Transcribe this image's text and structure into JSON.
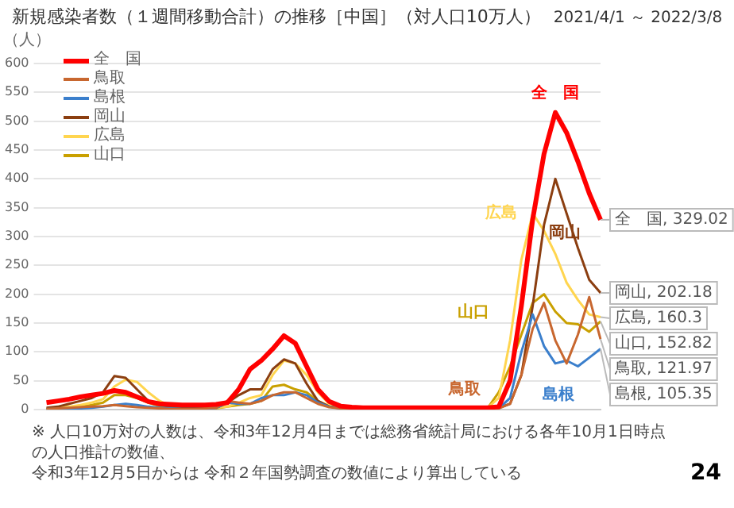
{
  "chart_data": {
    "type": "line",
    "title": "新規感染者数（１週間移動合計）の推移［中国］（対人口10万人）",
    "subtitle": "2021/4/1 ～ 2022/3/8",
    "ylabel": "（人）",
    "categories": [
      null,
      null,
      null,
      null,
      null,
      null,
      null,
      null,
      null,
      null,
      null,
      null,
      null,
      null,
      null,
      null,
      null,
      null,
      null,
      null,
      null,
      null,
      null,
      null,
      null,
      null,
      null,
      null,
      null,
      null,
      null,
      null,
      null,
      null,
      null,
      null,
      null,
      null,
      null,
      null,
      null,
      null,
      null,
      null,
      null,
      null,
      null,
      null,
      null,
      null
    ],
    "series": [
      {
        "name": "全　国",
        "color": "#ff0000",
        "values": [
          12,
          15,
          18,
          22,
          25,
          28,
          33,
          30,
          22,
          14,
          10,
          9,
          8,
          8,
          8,
          9,
          12,
          35,
          70,
          85,
          105,
          128,
          115,
          75,
          35,
          14,
          6,
          4,
          3,
          3,
          3,
          3,
          3,
          3,
          3,
          3,
          3,
          3,
          3,
          3,
          5,
          50,
          180,
          330,
          443,
          515,
          480,
          430,
          375,
          329.02
        ],
        "value_labels": [
          null,
          null,
          null,
          null,
          null,
          null,
          null,
          null,
          null,
          null,
          null,
          null,
          null,
          null,
          null,
          null,
          null,
          null,
          null,
          null,
          null,
          null,
          null,
          null,
          null,
          null,
          null,
          null,
          null,
          null,
          null,
          null,
          null,
          null,
          null,
          null,
          null,
          null,
          null,
          null,
          null,
          null,
          null,
          null,
          null,
          null,
          null,
          null,
          null,
          "全　国, 329.02"
        ]
      },
      {
        "name": "鳥取",
        "color": "#c8672f",
        "values": [
          1,
          2,
          3,
          4,
          5,
          6,
          8,
          6,
          4,
          3,
          2,
          1,
          1,
          1,
          2,
          3,
          15,
          12,
          10,
          15,
          25,
          30,
          30,
          20,
          10,
          4,
          2,
          1,
          1,
          1,
          1,
          1,
          1,
          1,
          1,
          1,
          1,
          1,
          1,
          1,
          2,
          10,
          60,
          140,
          185,
          120,
          80,
          130,
          195,
          121.97
        ],
        "value_labels": [
          null,
          null,
          null,
          null,
          null,
          null,
          null,
          null,
          null,
          null,
          null,
          null,
          null,
          null,
          null,
          null,
          null,
          null,
          null,
          null,
          null,
          null,
          null,
          null,
          null,
          null,
          null,
          null,
          null,
          null,
          null,
          null,
          null,
          null,
          null,
          null,
          null,
          null,
          null,
          null,
          null,
          null,
          null,
          null,
          null,
          null,
          null,
          null,
          null,
          "鳥取, 121.97"
        ]
      },
      {
        "name": "島根",
        "color": "#3b7fcc",
        "values": [
          1,
          1,
          2,
          2,
          3,
          5,
          8,
          10,
          8,
          5,
          3,
          2,
          1,
          1,
          1,
          3,
          12,
          10,
          10,
          20,
          25,
          25,
          30,
          25,
          12,
          5,
          2,
          1,
          1,
          1,
          1,
          1,
          1,
          1,
          1,
          1,
          1,
          1,
          1,
          1,
          2,
          20,
          100,
          165,
          110,
          80,
          85,
          75,
          90,
          105.35
        ],
        "value_labels": [
          null,
          null,
          null,
          null,
          null,
          null,
          null,
          null,
          null,
          null,
          null,
          null,
          null,
          null,
          null,
          null,
          null,
          null,
          null,
          null,
          null,
          null,
          null,
          null,
          null,
          null,
          null,
          null,
          null,
          null,
          null,
          null,
          null,
          null,
          null,
          null,
          null,
          null,
          null,
          null,
          null,
          null,
          null,
          null,
          null,
          null,
          null,
          null,
          null,
          "島根, 105.35"
        ]
      },
      {
        "name": "岡山",
        "color": "#8b3e10",
        "values": [
          3,
          5,
          10,
          15,
          20,
          30,
          58,
          55,
          35,
          15,
          8,
          5,
          3,
          2,
          2,
          3,
          12,
          25,
          35,
          35,
          70,
          87,
          80,
          45,
          15,
          5,
          3,
          2,
          2,
          2,
          2,
          2,
          2,
          2,
          2,
          2,
          2,
          2,
          2,
          2,
          3,
          10,
          60,
          180,
          320,
          400,
          340,
          280,
          225,
          202.18
        ],
        "value_labels": [
          null,
          null,
          null,
          null,
          null,
          null,
          null,
          null,
          null,
          null,
          null,
          null,
          null,
          null,
          null,
          null,
          null,
          null,
          null,
          null,
          null,
          null,
          null,
          null,
          null,
          null,
          null,
          null,
          null,
          null,
          null,
          null,
          null,
          null,
          null,
          null,
          null,
          null,
          null,
          null,
          null,
          null,
          null,
          null,
          null,
          null,
          null,
          null,
          null,
          "岡山, 202.18"
        ]
      },
      {
        "name": "広島",
        "color": "#ffd54f",
        "values": [
          2,
          3,
          5,
          8,
          12,
          18,
          40,
          52,
          48,
          30,
          15,
          6,
          3,
          2,
          2,
          3,
          5,
          12,
          20,
          25,
          60,
          85,
          80,
          60,
          30,
          10,
          4,
          2,
          2,
          2,
          2,
          2,
          2,
          2,
          2,
          2,
          2,
          2,
          2,
          3,
          20,
          120,
          260,
          340,
          310,
          270,
          220,
          190,
          165,
          160.3
        ],
        "value_labels": [
          null,
          null,
          null,
          null,
          null,
          null,
          null,
          null,
          null,
          null,
          null,
          null,
          null,
          null,
          null,
          null,
          null,
          null,
          null,
          null,
          null,
          null,
          null,
          null,
          null,
          null,
          null,
          null,
          null,
          null,
          null,
          null,
          null,
          null,
          null,
          null,
          null,
          null,
          null,
          null,
          null,
          null,
          null,
          null,
          null,
          null,
          null,
          null,
          null,
          "広島, 160.3"
        ]
      },
      {
        "name": "山口",
        "color": "#c9a000",
        "values": [
          1,
          2,
          3,
          5,
          8,
          12,
          25,
          25,
          20,
          12,
          6,
          3,
          2,
          1,
          1,
          2,
          5,
          8,
          10,
          15,
          40,
          43,
          35,
          30,
          15,
          6,
          3,
          2,
          1,
          1,
          1,
          1,
          1,
          1,
          1,
          1,
          1,
          1,
          2,
          2,
          30,
          75,
          130,
          185,
          200,
          170,
          150,
          148,
          135,
          152.82
        ],
        "value_labels": [
          null,
          null,
          null,
          null,
          null,
          null,
          null,
          null,
          null,
          null,
          null,
          null,
          null,
          null,
          null,
          null,
          null,
          null,
          null,
          null,
          null,
          null,
          null,
          null,
          null,
          null,
          null,
          null,
          null,
          null,
          null,
          null,
          null,
          null,
          null,
          null,
          null,
          null,
          null,
          null,
          null,
          null,
          null,
          null,
          null,
          null,
          null,
          null,
          null,
          "山口, 152.82"
        ]
      }
    ],
    "ylim": [
      0,
      600
    ],
    "yticks": [
      0,
      50,
      100,
      150,
      200,
      250,
      300,
      350,
      400,
      450,
      500,
      550,
      600
    ],
    "grid": "y",
    "tick_labels": "y",
    "legend": "top left",
    "marker": "none",
    "line_style": "solid",
    "annotations": [
      "※ 人口10万対の人数は、令和3年12月4日までは総務省統計局における各年10月1日時点の人口推計の数値、",
      "令和3年12月5日からは 令和２年国勢調査の数値により算出している",
      "24"
    ]
  }
}
